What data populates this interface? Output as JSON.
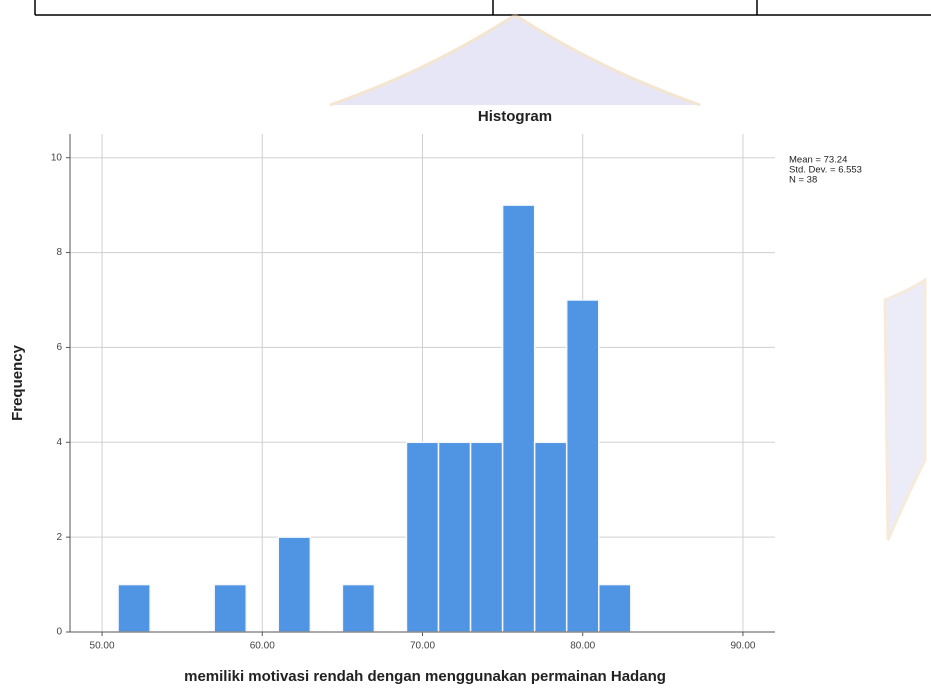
{
  "chart_data": {
    "type": "histogram",
    "title": "Histogram",
    "x_label": "memiliki motivasi rendah dengan menggunakan permainan Hadang",
    "y_label": "Frequency",
    "bins": [
      51,
      53,
      55,
      57,
      59,
      61,
      63,
      65,
      67,
      69,
      71,
      73,
      75,
      77,
      79,
      81,
      83
    ],
    "values": [
      1,
      0,
      0,
      1,
      0,
      2,
      0,
      1,
      0,
      4,
      4,
      4,
      9,
      4,
      7,
      1
    ],
    "color": "#5094e4",
    "xlim": [
      48,
      92
    ],
    "xticks": [
      {
        "value": 50,
        "label": "50.00"
      },
      {
        "value": 60,
        "label": "60.00"
      },
      {
        "value": 70,
        "label": "70.00"
      },
      {
        "value": 80,
        "label": "80.00"
      },
      {
        "value": 90,
        "label": "90.00"
      }
    ],
    "ylim": [
      0,
      10.5
    ],
    "yticks": [
      0,
      2,
      4,
      6,
      8,
      10
    ],
    "grid": true,
    "stats": [
      "Mean = 73.24",
      "Std. Dev. = 6.553",
      "N = 38"
    ]
  }
}
